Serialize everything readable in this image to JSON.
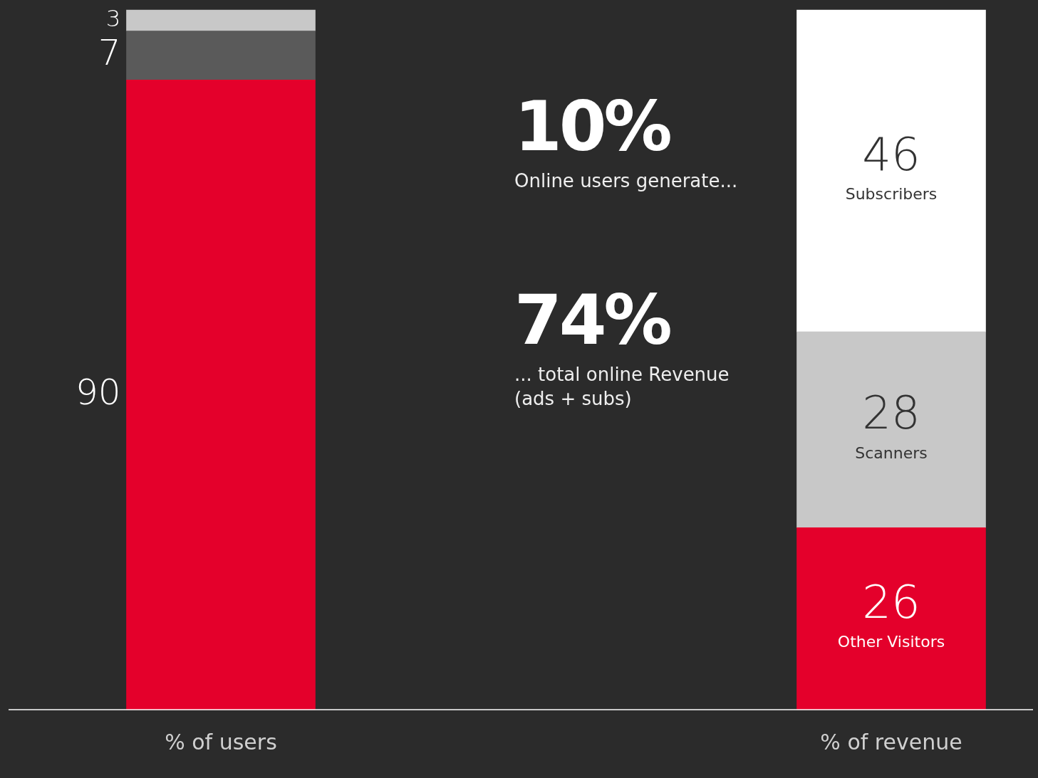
{
  "chart_data": {
    "type": "bar",
    "stacked": true,
    "categories": [
      "% of users",
      "% of revenue"
    ],
    "series": [
      {
        "name": "Other Visitors",
        "colors": [
          "#e4002b",
          "#e4002b"
        ],
        "values": [
          90,
          26
        ]
      },
      {
        "name": "Scanners",
        "colors": [
          "#5a5a5a",
          "#c8c8c8"
        ],
        "values": [
          7,
          28
        ]
      },
      {
        "name": "Subscribers",
        "colors": [
          "#c8c8c8",
          "#ffffff"
        ],
        "values": [
          3,
          46
        ]
      }
    ],
    "ylim": [
      0,
      100
    ],
    "tick_labels": "x",
    "grid": false,
    "legend": false,
    "data_labels": true,
    "annotations": [
      "10%",
      "Online users generate...",
      "74%",
      "... total online Revenue (ads + subs)"
    ]
  }
}
